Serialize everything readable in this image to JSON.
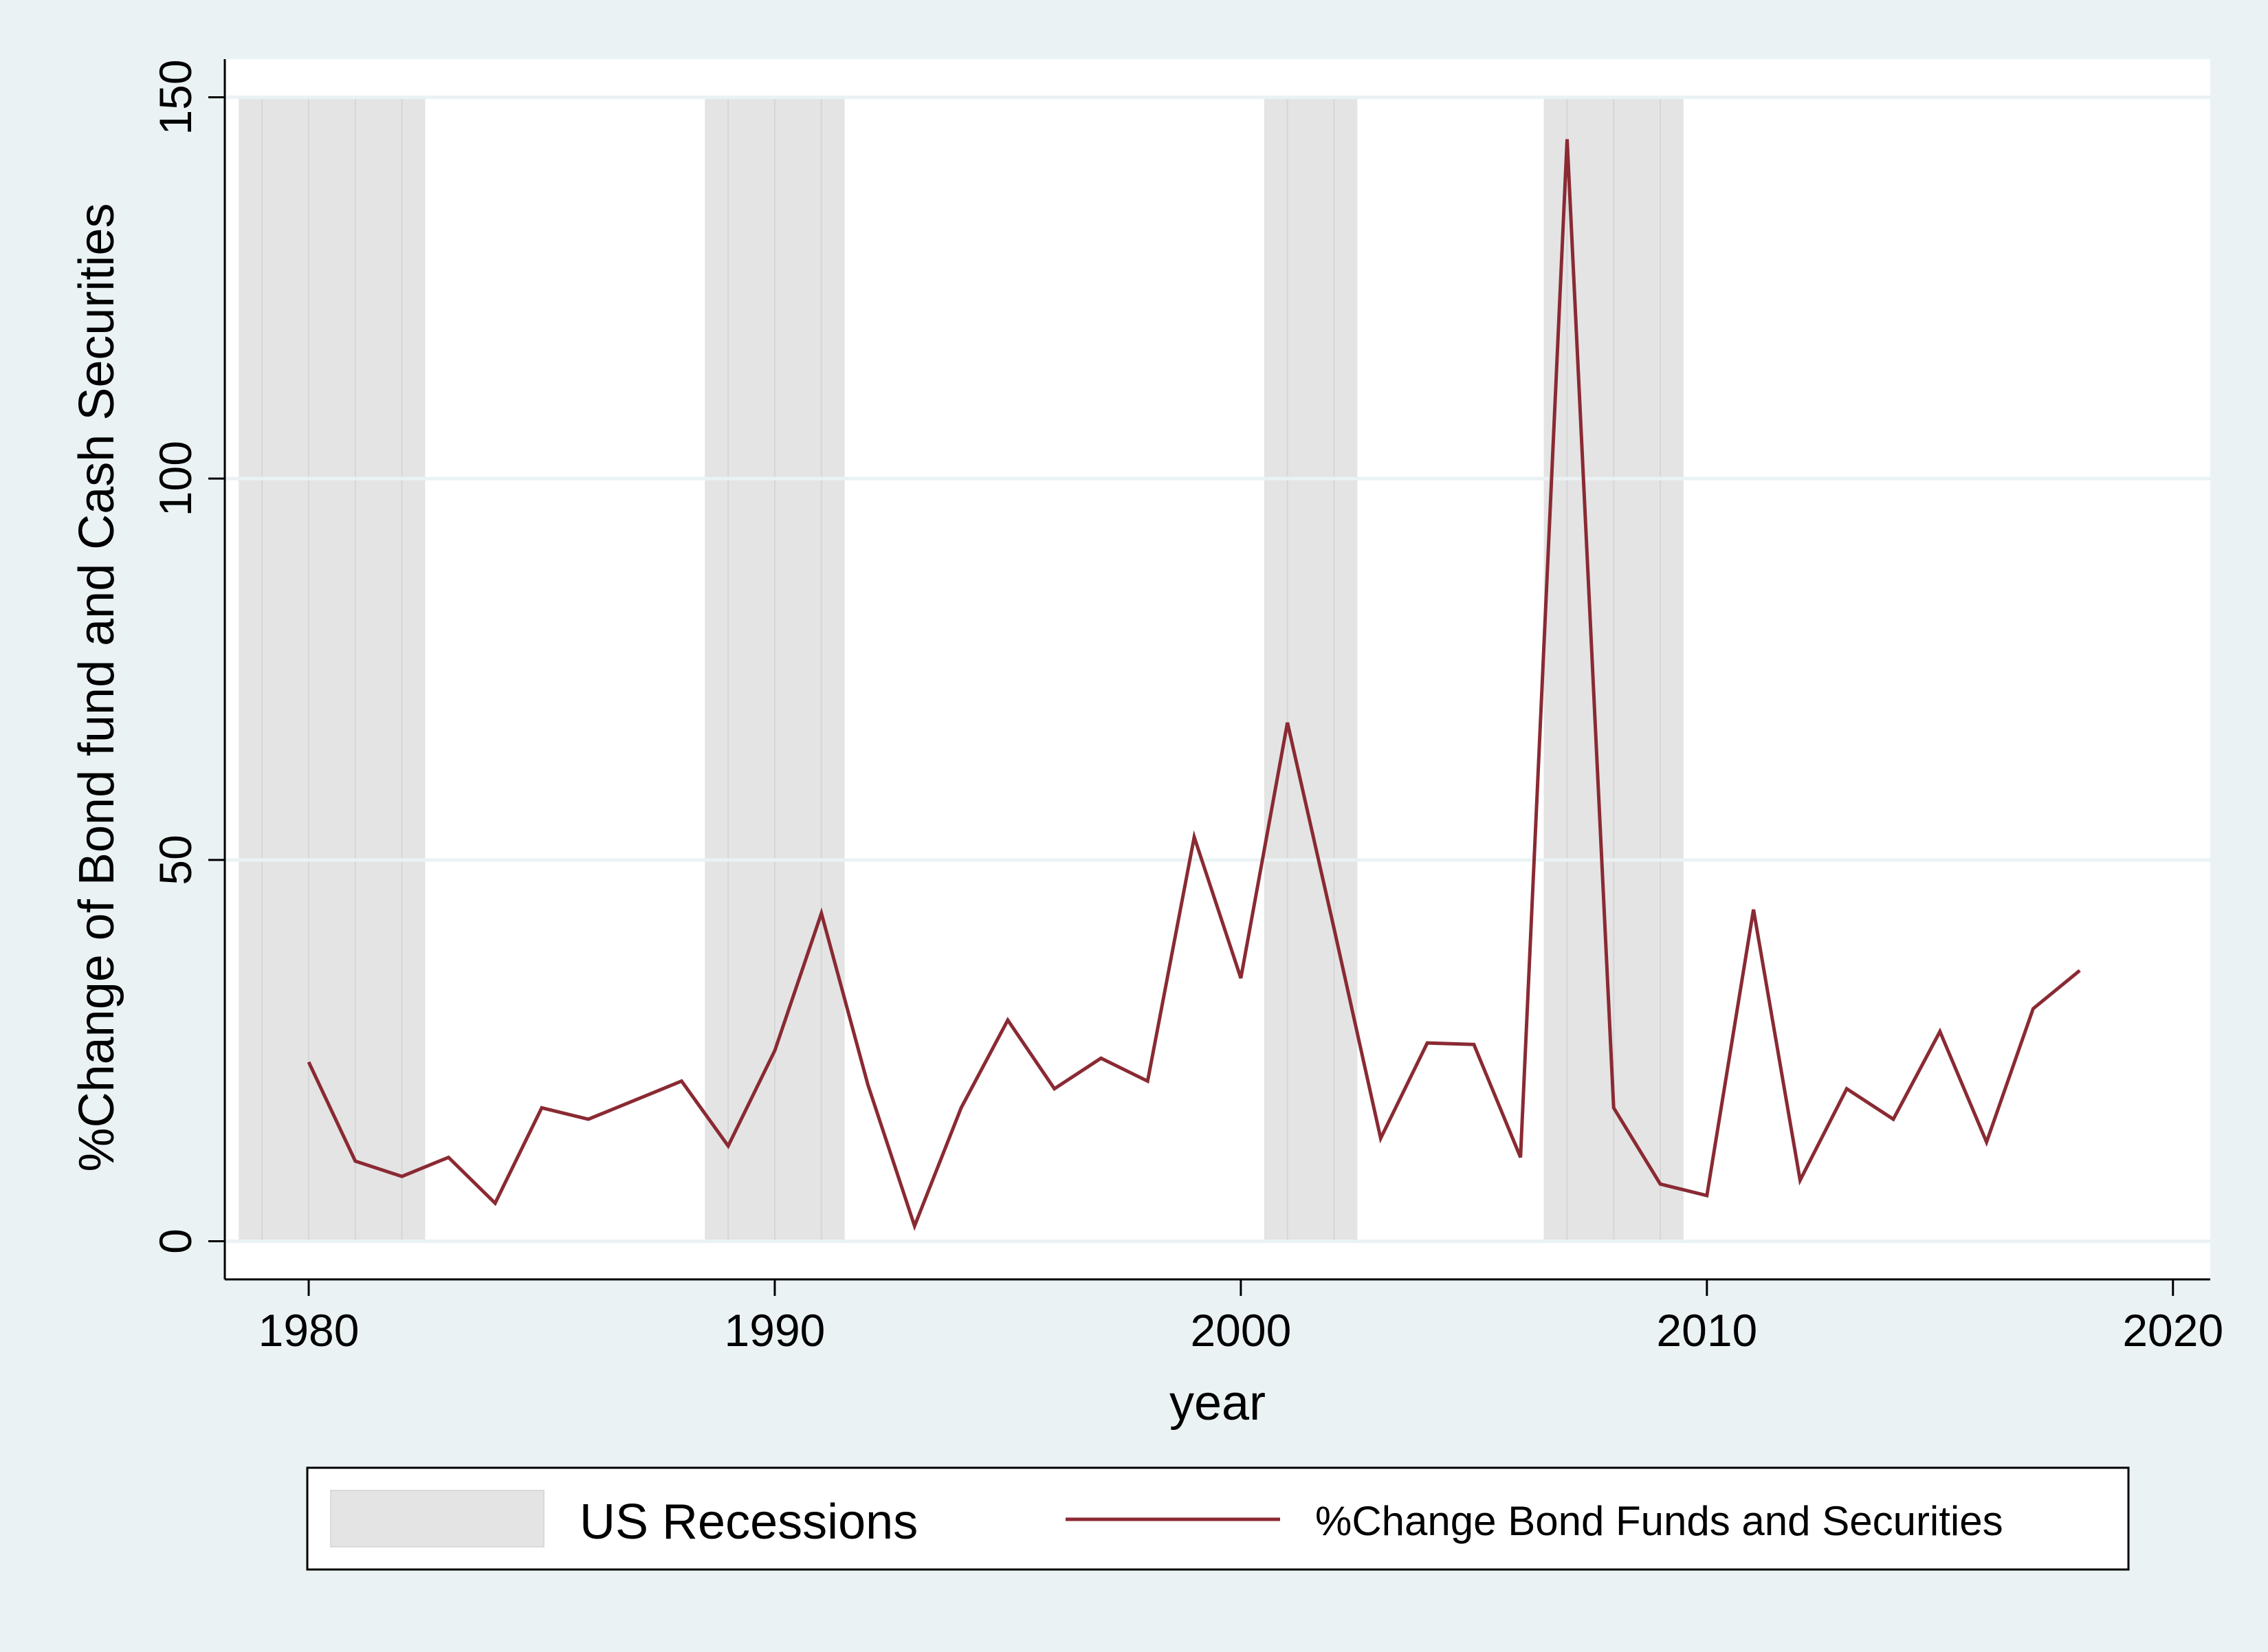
{
  "chart_data": {
    "type": "line",
    "title": "",
    "xlabel": "year",
    "ylabel": "%Change of Bond fund and Cash Securities",
    "xlim": [
      1978.2,
      2020.8
    ],
    "ylim": [
      -5,
      155
    ],
    "x_ticks": [
      1980,
      1990,
      2000,
      2010,
      2020
    ],
    "x_tick_labels": [
      "1980",
      "1990",
      "2000",
      "2010",
      "2020"
    ],
    "y_ticks": [
      0,
      50,
      100,
      150
    ],
    "y_tick_labels": [
      "0",
      "50",
      "100",
      "150"
    ],
    "grid": true,
    "legend_position": "bottom",
    "recessions": [
      {
        "start": 1978.5,
        "end": 1982.5
      },
      {
        "start": 1988.5,
        "end": 1991.5
      },
      {
        "start": 2000.5,
        "end": 2002.5
      },
      {
        "start": 2006.5,
        "end": 2009.5
      }
    ],
    "recession_color": "#e4e4e4",
    "series": [
      {
        "name": "%Change Bond Funds and Securities",
        "color": "#8a2a33",
        "x": [
          1980,
          1981,
          1982,
          1983,
          1984,
          1985,
          1986,
          1987,
          1988,
          1989,
          1990,
          1991,
          1992,
          1993,
          1994,
          1995,
          1996,
          1997,
          1998,
          1999,
          2000,
          2001,
          2002,
          2003,
          2004,
          2005,
          2006,
          2007,
          2008,
          2009,
          2010,
          2011,
          2012,
          2013,
          2014,
          2015,
          2016,
          2017,
          2018
        ],
        "values": [
          23.5,
          10.5,
          8.5,
          11,
          5,
          17.5,
          16,
          18.5,
          21,
          12.5,
          25,
          43,
          20.5,
          2,
          17.5,
          29,
          20,
          24,
          21,
          53,
          34.5,
          68,
          41,
          13.5,
          26,
          25.8,
          11,
          144.5,
          17.5,
          7.5,
          6,
          43.5,
          8,
          20,
          16,
          27.5,
          13,
          30.5,
          35.5
        ]
      }
    ],
    "legend": {
      "recessions_label": "US Recessions",
      "series_label": "%Change Bond Funds and Securities"
    }
  }
}
